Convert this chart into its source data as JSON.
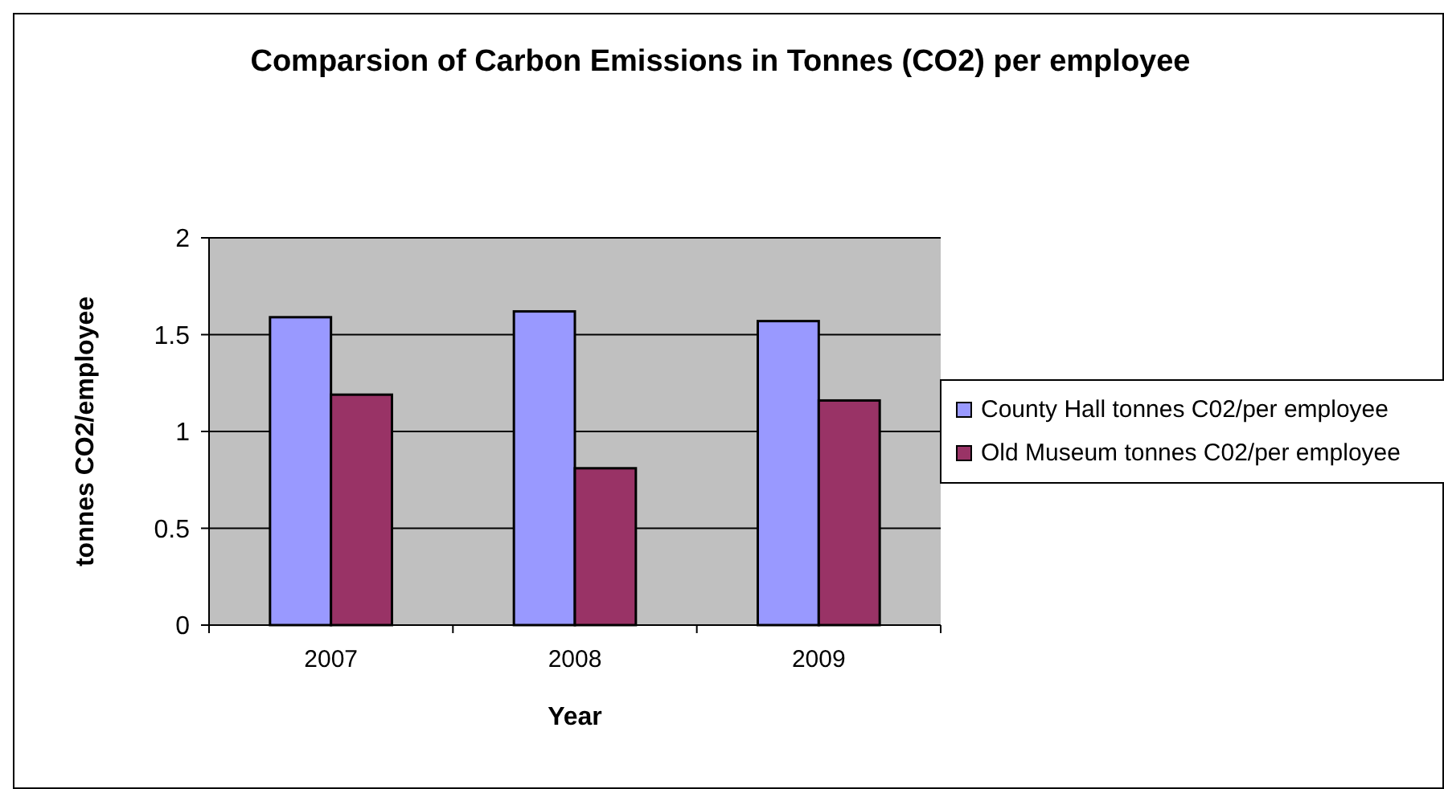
{
  "chart_data": {
    "type": "bar",
    "title": "Comparsion of Carbon Emissions in Tonnes (CO2)  per employee",
    "xlabel": "Year",
    "ylabel": "tonnes CO2/employee",
    "categories": [
      "2007",
      "2008",
      "2009"
    ],
    "series": [
      {
        "name": "County Hall tonnes C02/per employee",
        "color": "#9999ff",
        "values": [
          1.59,
          1.62,
          1.57
        ]
      },
      {
        "name": "Old Museum tonnes C02/per employee",
        "color": "#993366",
        "values": [
          1.19,
          0.81,
          1.16
        ]
      }
    ],
    "ylim": [
      0,
      2
    ],
    "yticks": [
      0,
      0.5,
      1,
      1.5,
      2
    ],
    "grid": "y",
    "legend": "right"
  }
}
